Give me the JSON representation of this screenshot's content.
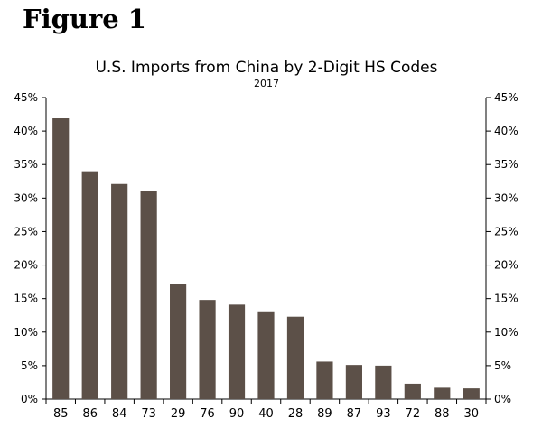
{
  "figure_label": "Figure 1",
  "chart_data": {
    "type": "bar",
    "title": "U.S. Imports from China by 2-Digit HS Codes",
    "subtitle": "2017",
    "xlabel": "",
    "ylabel": "",
    "categories": [
      "85",
      "86",
      "84",
      "73",
      "29",
      "76",
      "90",
      "40",
      "28",
      "89",
      "87",
      "93",
      "72",
      "88",
      "30"
    ],
    "values": [
      41.9,
      34.0,
      32.1,
      31.0,
      17.2,
      14.8,
      14.1,
      13.1,
      12.3,
      5.6,
      5.1,
      5.0,
      2.3,
      1.7,
      1.6
    ],
    "ylim": [
      0,
      45
    ],
    "y_ticks": [
      "0%",
      "5%",
      "10%",
      "15%",
      "20%",
      "25%",
      "30%",
      "35%",
      "40%",
      "45%"
    ],
    "y_tick_values": [
      0,
      5,
      10,
      15,
      20,
      25,
      30,
      35,
      40,
      45
    ],
    "y_axis_right": true,
    "grid": false,
    "bar_color": "#5c5048"
  }
}
